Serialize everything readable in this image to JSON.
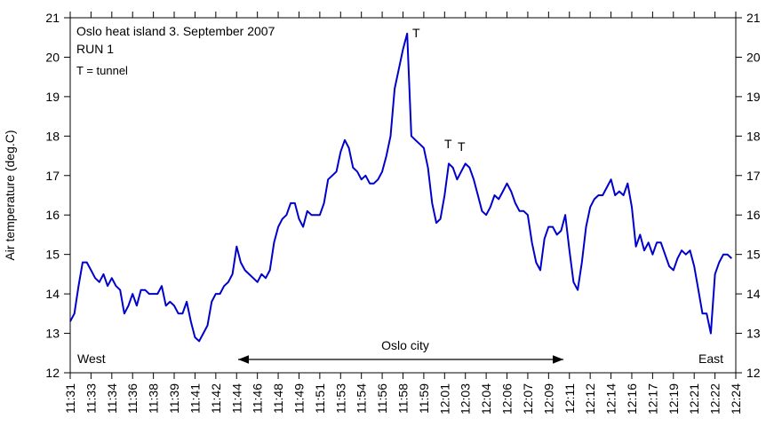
{
  "chart_data": {
    "type": "line",
    "title": "Oslo heat island 3. September 2007",
    "subtitle": "RUN 1",
    "annotations": {
      "note": "T = tunnel",
      "tunnel": "T",
      "west": "West",
      "east": "East",
      "city": "Oslo city"
    },
    "y_label": "Air temperature (deg.C)",
    "ylim": [
      12,
      21
    ],
    "yticks": [
      12,
      13,
      14,
      15,
      16,
      17,
      18,
      19,
      20,
      21
    ],
    "xlim": [
      0,
      160
    ],
    "xticks": [
      {
        "value": 0,
        "label": "11:31"
      },
      {
        "value": 5,
        "label": "11:33"
      },
      {
        "value": 10,
        "label": "11:34"
      },
      {
        "value": 15,
        "label": "11:36"
      },
      {
        "value": 20,
        "label": "11:38"
      },
      {
        "value": 25,
        "label": "11:39"
      },
      {
        "value": 30,
        "label": "11:41"
      },
      {
        "value": 35,
        "label": "11:42"
      },
      {
        "value": 40,
        "label": "11:44"
      },
      {
        "value": 45,
        "label": "11:46"
      },
      {
        "value": 50,
        "label": "11:48"
      },
      {
        "value": 55,
        "label": "11:49"
      },
      {
        "value": 60,
        "label": "11:51"
      },
      {
        "value": 65,
        "label": "11:53"
      },
      {
        "value": 70,
        "label": "11:54"
      },
      {
        "value": 75,
        "label": "11:56"
      },
      {
        "value": 80,
        "label": "11:58"
      },
      {
        "value": 85,
        "label": "11:59"
      },
      {
        "value": 90,
        "label": "12:01"
      },
      {
        "value": 95,
        "label": "12:03"
      },
      {
        "value": 100,
        "label": "12:04"
      },
      {
        "value": 105,
        "label": "12:06"
      },
      {
        "value": 110,
        "label": "12:07"
      },
      {
        "value": 115,
        "label": "12:09"
      },
      {
        "value": 120,
        "label": "12:11"
      },
      {
        "value": 125,
        "label": "12:12"
      },
      {
        "value": 130,
        "label": "12:14"
      },
      {
        "value": 135,
        "label": "12:16"
      },
      {
        "value": 140,
        "label": "12:17"
      },
      {
        "value": 145,
        "label": "12:19"
      },
      {
        "value": 150,
        "label": "12:21"
      },
      {
        "value": 155,
        "label": "12:22"
      },
      {
        "value": 160,
        "label": "12:24"
      }
    ],
    "color": "#0000cc",
    "x": [
      0,
      1,
      2,
      3,
      4,
      5,
      6,
      7,
      8,
      9,
      10,
      11,
      12,
      13,
      14,
      15,
      16,
      17,
      18,
      19,
      20,
      21,
      22,
      23,
      24,
      25,
      26,
      27,
      28,
      29,
      30,
      31,
      32,
      33,
      34,
      35,
      36,
      37,
      38,
      39,
      40,
      41,
      42,
      43,
      44,
      45,
      46,
      47,
      48,
      49,
      50,
      51,
      52,
      53,
      54,
      55,
      56,
      57,
      58,
      59,
      60,
      61,
      62,
      63,
      64,
      65,
      66,
      67,
      68,
      69,
      70,
      71,
      72,
      73,
      74,
      75,
      76,
      77,
      78,
      79,
      80,
      81,
      82,
      83,
      84,
      85,
      86,
      87,
      88,
      89,
      90,
      91,
      92,
      93,
      94,
      95,
      96,
      97,
      98,
      99,
      100,
      101,
      102,
      103,
      104,
      105,
      106,
      107,
      108,
      109,
      110,
      111,
      112,
      113,
      114,
      115,
      116,
      117,
      118,
      119,
      120,
      121,
      122,
      123,
      124,
      125,
      126,
      127,
      128,
      129,
      130,
      131,
      132,
      133,
      134,
      135,
      136,
      137,
      138,
      139,
      140,
      141,
      142,
      143,
      144,
      145,
      146,
      147,
      148,
      149,
      150,
      151,
      152,
      153,
      154,
      155,
      156,
      157,
      158,
      159
    ],
    "values": [
      13.3,
      13.5,
      14.2,
      14.8,
      14.8,
      14.6,
      14.4,
      14.3,
      14.5,
      14.2,
      14.4,
      14.2,
      14.1,
      13.5,
      13.7,
      14.0,
      13.7,
      14.1,
      14.1,
      14.0,
      14.0,
      14.0,
      14.2,
      13.7,
      13.8,
      13.7,
      13.5,
      13.5,
      13.8,
      13.3,
      12.9,
      12.8,
      13.0,
      13.2,
      13.8,
      14.0,
      14.0,
      14.2,
      14.3,
      14.5,
      15.2,
      14.8,
      14.6,
      14.5,
      14.4,
      14.3,
      14.5,
      14.4,
      14.6,
      15.3,
      15.7,
      15.9,
      16.0,
      16.3,
      16.3,
      15.9,
      15.7,
      16.1,
      16.0,
      16.0,
      16.0,
      16.3,
      16.9,
      17.0,
      17.1,
      17.6,
      17.9,
      17.7,
      17.2,
      17.1,
      16.9,
      17.0,
      16.8,
      16.8,
      16.9,
      17.1,
      17.5,
      18.0,
      19.2,
      19.7,
      20.2,
      20.6,
      18.0,
      17.9,
      17.8,
      17.7,
      17.2,
      16.3,
      15.8,
      15.9,
      16.5,
      17.3,
      17.2,
      16.9,
      17.1,
      17.3,
      17.2,
      16.9,
      16.5,
      16.1,
      16.0,
      16.2,
      16.5,
      16.4,
      16.6,
      16.8,
      16.6,
      16.3,
      16.1,
      16.1,
      16.0,
      15.3,
      14.8,
      14.6,
      15.4,
      15.7,
      15.7,
      15.5,
      15.6,
      16.0,
      15.1,
      14.3,
      14.1,
      14.8,
      15.7,
      16.2,
      16.4,
      16.5,
      16.5,
      16.7,
      16.9,
      16.5,
      16.6,
      16.5,
      16.8,
      16.2,
      15.2,
      15.5,
      15.1,
      15.3,
      15.0,
      15.3,
      15.3,
      15.0,
      14.7,
      14.6,
      14.9,
      15.1,
      15.0,
      15.1,
      14.7,
      14.1,
      13.5,
      13.5,
      13.0,
      14.5,
      14.8,
      15.0,
      15.0,
      14.9
    ]
  }
}
